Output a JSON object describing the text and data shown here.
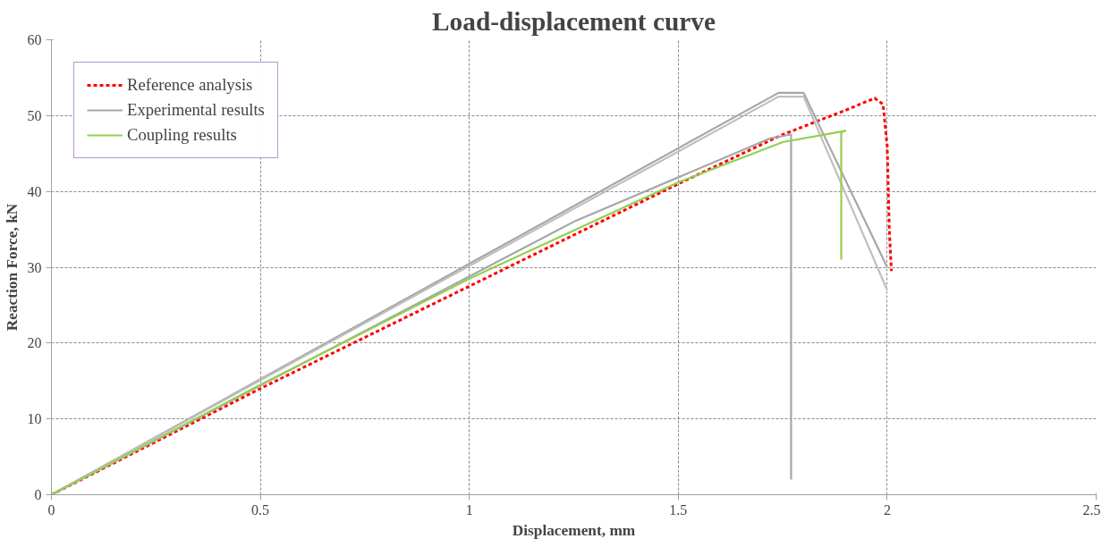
{
  "chart_data": {
    "type": "line",
    "title": "Load-displacement curve",
    "xlabel": "Displacement, mm",
    "ylabel": "Reaction Force, kN",
    "xlim": [
      0,
      2.5
    ],
    "xticks": [
      0,
      0.5,
      1,
      1.5,
      2,
      2.5
    ],
    "ylim": [
      0,
      60
    ],
    "yticks": [
      0,
      10,
      20,
      30,
      40,
      50,
      60
    ],
    "grid": true,
    "legend": "top left",
    "marker": "none",
    "series": [
      {
        "name": "Reference analysis",
        "color": "#ff0000",
        "line_style": "dashed",
        "x": [
          0,
          0.5,
          1,
          1.5,
          1.75,
          1.9,
          1.97,
          1.99,
          2.0,
          2.005,
          2.01
        ],
        "values": [
          0,
          14,
          27.5,
          41,
          47.5,
          50.7,
          52.3,
          51.5,
          46,
          35,
          29.5
        ]
      },
      {
        "name": "Experimental results",
        "color": "#a6a6a6",
        "line_style": "solid",
        "x": [
          0,
          1.74,
          1.8,
          2.0
        ],
        "values": [
          0,
          53,
          53,
          30
        ]
      },
      {
        "color": "#bfbfbf",
        "line_style": "solid",
        "x": [
          0,
          1.74,
          1.8,
          2.0
        ],
        "values": [
          0,
          52.5,
          52.5,
          27
        ]
      },
      {
        "color": "#a6a6a6",
        "line_style": "solid",
        "x": [
          0,
          1.25,
          1.72,
          1.77,
          1.77
        ],
        "values": [
          0,
          36,
          47,
          47.5,
          2
        ]
      },
      {
        "name": "Coupling results",
        "color": "#92d050",
        "line_style": "solid",
        "x": [
          0,
          0.5,
          1,
          1.5,
          1.75,
          1.9,
          1.89,
          1.89
        ],
        "values": [
          0,
          14.5,
          28.5,
          41.2,
          46.5,
          48,
          47.8,
          31
        ]
      }
    ]
  }
}
